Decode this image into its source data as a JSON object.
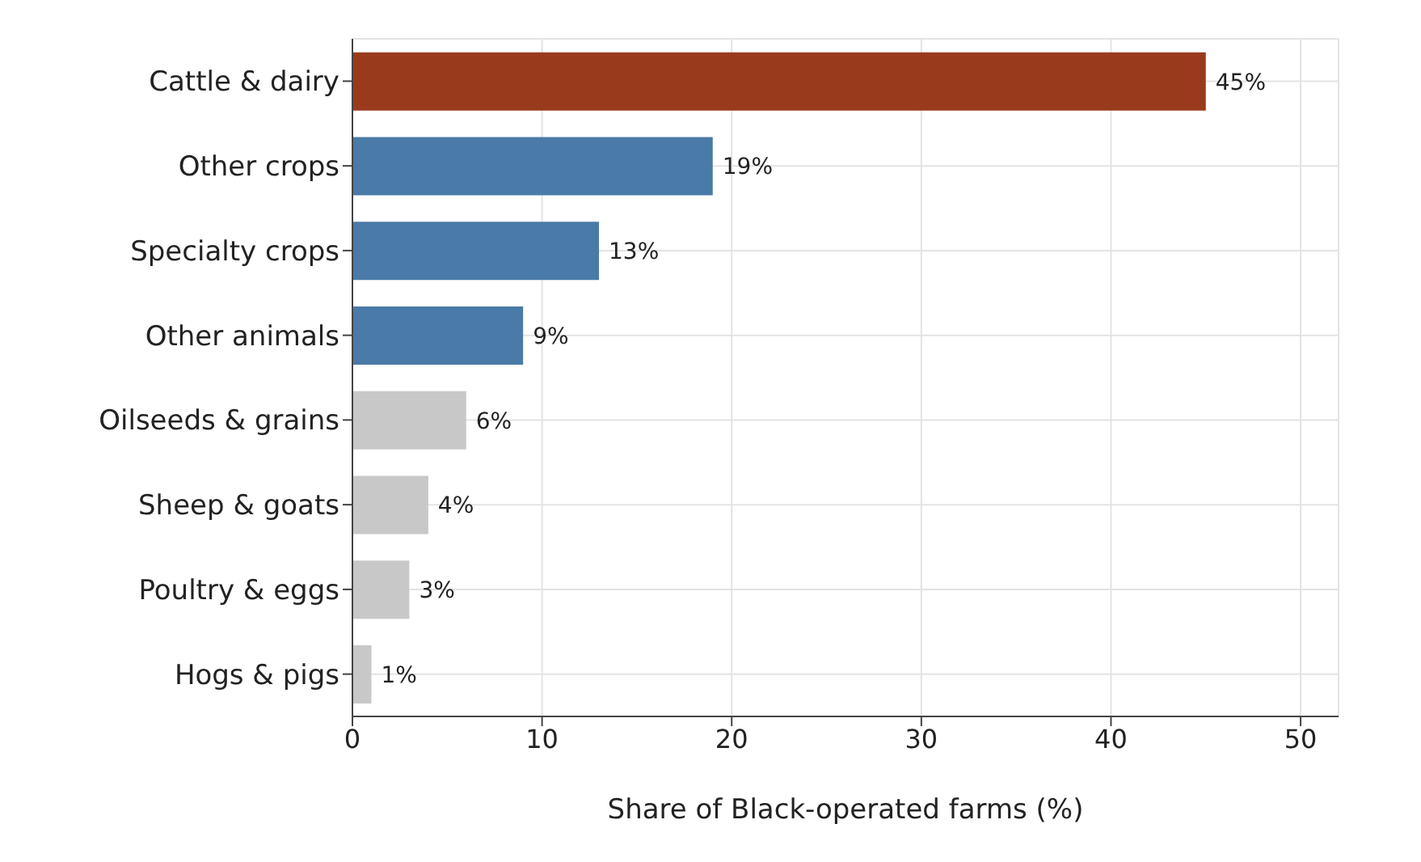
{
  "chart_data": {
    "type": "bar",
    "orientation": "horizontal",
    "xlabel": "Share of Black-operated farms (%)",
    "categories": [
      "Cattle & dairy",
      "Other crops",
      "Specialty crops",
      "Other animals",
      "Oilseeds & grains",
      "Sheep & goats",
      "Poultry & eggs",
      "Hogs & pigs"
    ],
    "values": [
      45,
      19,
      13,
      9,
      6,
      4,
      3,
      1
    ],
    "colors": [
      "#9a3a1d",
      "#4a7aa7",
      "#4a7aa7",
      "#4a7aa7",
      "#c8c8c8",
      "#c8c8c8",
      "#c8c8c8",
      "#c8c8c8"
    ],
    "value_labels": [
      "45%",
      "19%",
      "13%",
      "9%",
      "6%",
      "4%",
      "3%",
      "1%"
    ],
    "xlim": [
      0,
      52
    ],
    "xticks": [
      0,
      10,
      20,
      30,
      40,
      50
    ],
    "grid": true
  }
}
